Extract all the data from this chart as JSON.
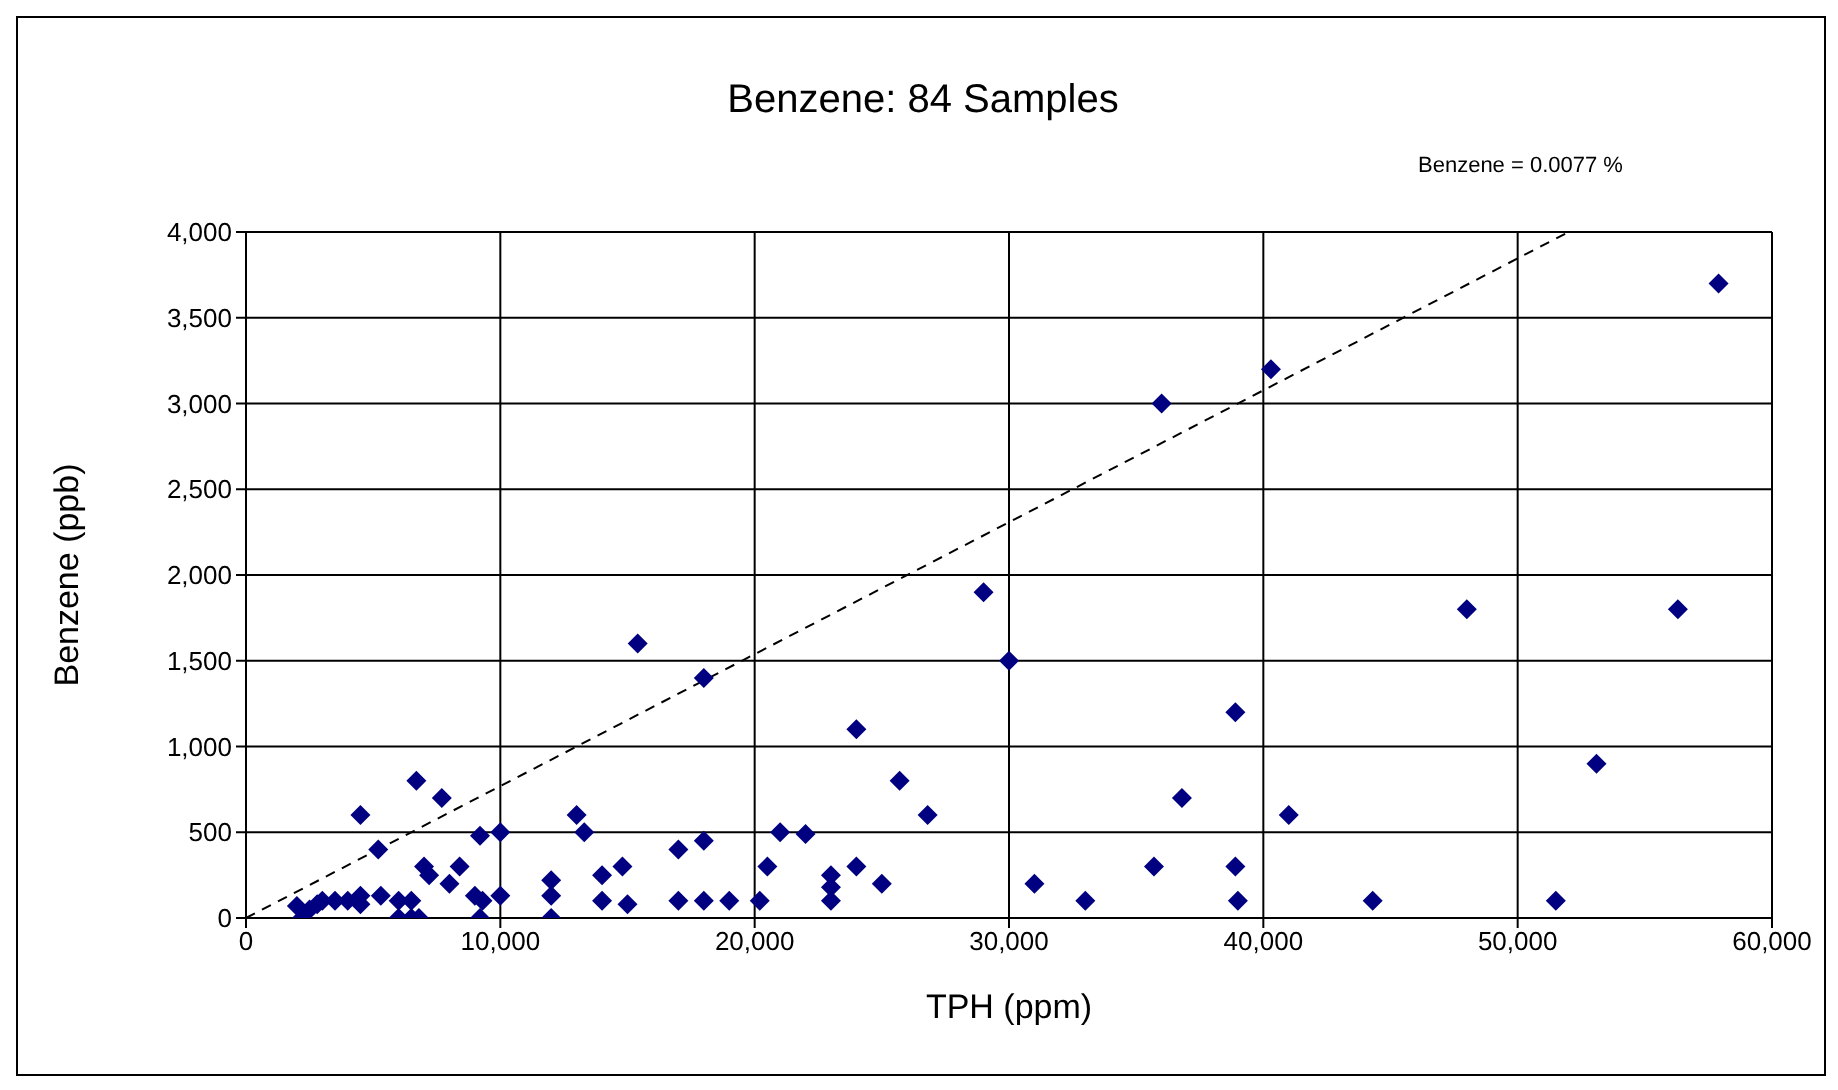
{
  "chart_data": {
    "type": "scatter",
    "title": "Benzene:  84 Samples",
    "xlabel": "TPH (ppm)",
    "ylabel": "Benzene (ppb)",
    "annotations": [
      "Benzene = 0.0077 %"
    ],
    "marker": "diamond",
    "grid": true,
    "legend": false,
    "xlim": [
      0,
      60000
    ],
    "xticks": [
      0,
      {
        "value": 10000,
        "label": "10,000"
      },
      {
        "value": 20000,
        "label": "20,000"
      },
      {
        "value": 30000,
        "label": "30,000"
      },
      {
        "value": 40000,
        "label": "40,000"
      },
      {
        "value": 50000,
        "label": "50,000"
      },
      {
        "value": 60000,
        "label": "60,000"
      }
    ],
    "ylim": [
      0,
      4000
    ],
    "yticks": [
      0,
      500,
      {
        "value": 1000,
        "label": "1,000"
      },
      {
        "value": 1500,
        "label": "1,500"
      },
      {
        "value": 2000,
        "label": "2,000"
      },
      {
        "value": 2500,
        "label": "2,500"
      },
      {
        "value": 3000,
        "label": "3,000"
      },
      {
        "value": 3500,
        "label": "3,500"
      },
      {
        "value": 4000,
        "label": "4,000"
      }
    ],
    "series": [
      {
        "color": "#000080",
        "x": [
          2000,
          2200,
          2500,
          2800,
          3000,
          3500,
          4000,
          4500,
          4500,
          4500,
          5200,
          5300,
          6000,
          6000,
          6500,
          6500,
          6700,
          6800,
          7000,
          7200,
          7700,
          8000,
          8400,
          9000,
          9200,
          9200,
          9300,
          10000,
          10000,
          12000,
          12000,
          12000,
          13000,
          13300,
          14000,
          14000,
          14800,
          15000,
          15400,
          17000,
          17000,
          18000,
          18000,
          18000,
          19000,
          20200,
          20500,
          21000,
          22000,
          23000,
          23000,
          23000,
          24000,
          24000,
          25000,
          25700,
          26800,
          29000,
          30000,
          31000,
          33000,
          35700,
          36000,
          36800,
          38900,
          38900,
          39000,
          40300,
          41000,
          44300,
          48000,
          51500,
          53100,
          56300,
          57900
        ],
        "values": [
          70,
          0,
          50,
          80,
          100,
          100,
          100,
          600,
          130,
          80,
          400,
          130,
          100,
          0,
          0,
          100,
          800,
          0,
          300,
          250,
          700,
          200,
          300,
          130,
          480,
          0,
          100,
          500,
          130,
          220,
          130,
          0,
          600,
          500,
          250,
          100,
          300,
          80,
          1600,
          400,
          100,
          1400,
          450,
          100,
          100,
          100,
          300,
          500,
          490,
          250,
          180,
          100,
          1100,
          300,
          200,
          800,
          600,
          1900,
          1500,
          200,
          100,
          300,
          3000,
          700,
          1200,
          300,
          100,
          3200,
          600,
          100,
          1800,
          100,
          900,
          1800,
          3700
        ]
      },
      {
        "type": "line",
        "color": "#000000",
        "line_style": "dashed",
        "marker": "none",
        "x": [
          0,
          52000
        ],
        "values": [
          0,
          4000
        ]
      }
    ]
  }
}
